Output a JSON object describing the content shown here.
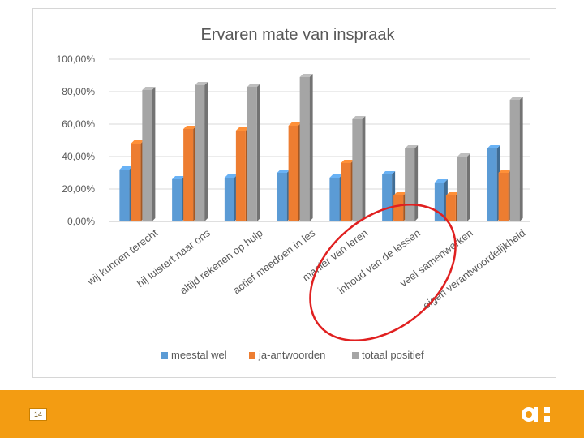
{
  "chart_data": {
    "type": "bar",
    "title": "Ervaren mate van inspraak",
    "categories": [
      "wij kunnen terecht",
      "hij luistert naar ons",
      "altijd rekenen op hulp",
      "actief meedoen in les",
      "manier van leren",
      "inhoud van de lessen",
      "veel samenwerken",
      "eigen verantwoordelijkheid"
    ],
    "series": [
      {
        "name": "meestal wel",
        "color": "#5b9bd5",
        "values": [
          32,
          26,
          27,
          30,
          27,
          29,
          24,
          45
        ]
      },
      {
        "name": "ja-antwoorden",
        "color": "#ed7d31",
        "values": [
          48,
          57,
          56,
          59,
          36,
          16,
          16,
          30
        ]
      },
      {
        "name": "totaal positief",
        "color": "#a5a5a5",
        "values": [
          81,
          84,
          83,
          89,
          63,
          45,
          40,
          75
        ]
      }
    ],
    "yticks": [
      "0,00%",
      "20,00%",
      "40,00%",
      "60,00%",
      "80,00%",
      "100,00%"
    ],
    "ylim": [
      0,
      100
    ],
    "grid": true,
    "legend_position": "bottom",
    "annotation": "red ellipse around 'inhoud van de lessen' and 'veel samenwerken'"
  },
  "footer": {
    "page_number": "14",
    "color": "#f39c12",
    "logo": "a-colon-logo"
  }
}
